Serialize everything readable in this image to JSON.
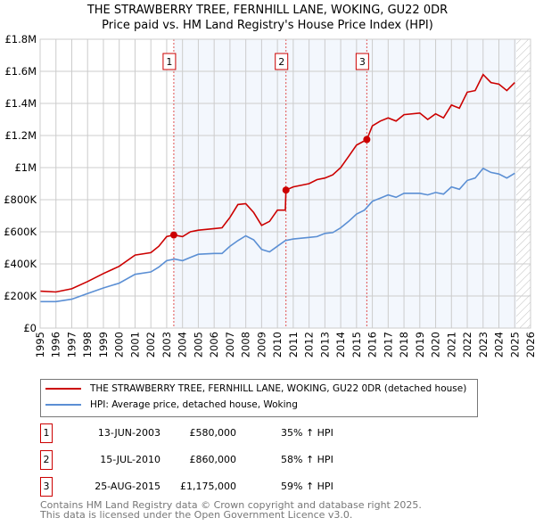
{
  "chart_data": {
    "type": "line",
    "title": "THE STRAWBERRY TREE, FERNHILL LANE, WOKING, GU22 0DR",
    "subtitle": "Price paid vs. HM Land Registry's House Price Index (HPI)",
    "xlim": [
      1995,
      2026
    ],
    "ylim": [
      0,
      1800000
    ],
    "x_ticks": [
      "1995",
      "1996",
      "1997",
      "1998",
      "1999",
      "2000",
      "2001",
      "2002",
      "2003",
      "2004",
      "2005",
      "2006",
      "2007",
      "2008",
      "2009",
      "2010",
      "2011",
      "2012",
      "2013",
      "2014",
      "2015",
      "2016",
      "2017",
      "2018",
      "2019",
      "2020",
      "2021",
      "2022",
      "2023",
      "2024",
      "2025",
      "2026"
    ],
    "y_ticks": [
      {
        "v": 0,
        "label": "£0"
      },
      {
        "v": 200000,
        "label": "£200K"
      },
      {
        "v": 400000,
        "label": "£400K"
      },
      {
        "v": 600000,
        "label": "£600K"
      },
      {
        "v": 800000,
        "label": "£800K"
      },
      {
        "v": 1000000,
        "label": "£1M"
      },
      {
        "v": 1200000,
        "label": "£1.2M"
      },
      {
        "v": 1400000,
        "label": "£1.4M"
      },
      {
        "v": 1600000,
        "label": "£1.6M"
      },
      {
        "v": 1800000,
        "label": "£1.8M"
      }
    ],
    "grid": true,
    "forecast_hatch_from": 2025.1,
    "series": [
      {
        "name": "THE STRAWBERRY TREE, FERNHILL LANE, WOKING, GU22 0DR (detached house)",
        "color": "#cc0000",
        "x": [
          1995,
          1996,
          1997,
          1998,
          1999,
          2000,
          2001,
          2002,
          2002.5,
          2003,
          2003.45,
          2004,
          2004.5,
          2005,
          2006,
          2006.5,
          2007,
          2007.5,
          2008,
          2008.5,
          2009,
          2009.5,
          2010,
          2010.5,
          2010.54,
          2011,
          2012,
          2012.5,
          2013,
          2013.5,
          2014,
          2014.5,
          2015,
          2015.65,
          2016,
          2016.5,
          2017,
          2017.5,
          2018,
          2019,
          2019.5,
          2020,
          2020.5,
          2021,
          2021.5,
          2022,
          2022.5,
          2023,
          2023.5,
          2024,
          2024.5,
          2025
        ],
        "y": [
          230000,
          225000,
          245000,
          290000,
          340000,
          385000,
          455000,
          470000,
          510000,
          570000,
          580000,
          570000,
          600000,
          610000,
          620000,
          625000,
          690000,
          770000,
          775000,
          720000,
          640000,
          665000,
          735000,
          735000,
          860000,
          880000,
          900000,
          925000,
          935000,
          955000,
          1000000,
          1070000,
          1140000,
          1175000,
          1260000,
          1290000,
          1310000,
          1290000,
          1330000,
          1340000,
          1300000,
          1335000,
          1310000,
          1390000,
          1370000,
          1470000,
          1480000,
          1580000,
          1530000,
          1520000,
          1480000,
          1530000
        ]
      },
      {
        "name": "HPI: Average price, detached house, Woking",
        "color": "#5b8fd4",
        "x": [
          1995,
          1996,
          1997,
          1998,
          1999,
          2000,
          2001,
          2002,
          2002.5,
          2003,
          2003.5,
          2004,
          2004.5,
          2005,
          2006,
          2006.5,
          2007,
          2007.5,
          2008,
          2008.5,
          2009,
          2009.5,
          2010,
          2010.5,
          2011,
          2012,
          2012.5,
          2013,
          2013.5,
          2014,
          2014.5,
          2015,
          2015.5,
          2016,
          2016.5,
          2017,
          2017.5,
          2018,
          2019,
          2019.5,
          2020,
          2020.5,
          2021,
          2021.5,
          2022,
          2022.5,
          2023,
          2023.5,
          2024,
          2024.5,
          2025
        ],
        "y": [
          165000,
          165000,
          180000,
          215000,
          250000,
          280000,
          335000,
          350000,
          380000,
          420000,
          430000,
          420000,
          440000,
          460000,
          465000,
          465000,
          510000,
          545000,
          575000,
          550000,
          490000,
          475000,
          510000,
          545000,
          555000,
          565000,
          570000,
          590000,
          595000,
          625000,
          665000,
          710000,
          735000,
          790000,
          810000,
          830000,
          815000,
          840000,
          840000,
          830000,
          845000,
          835000,
          880000,
          865000,
          920000,
          935000,
          995000,
          970000,
          960000,
          935000,
          965000
        ]
      }
    ],
    "transactions": [
      {
        "n": "1",
        "x": 2003.45,
        "date": "13-JUN-2003",
        "price": "£580,000",
        "value": 580000,
        "pct": "35% ↑ HPI"
      },
      {
        "n": "2",
        "x": 2010.54,
        "date": "15-JUL-2010",
        "price": "£860,000",
        "value": 860000,
        "pct": "58% ↑ HPI"
      },
      {
        "n": "3",
        "x": 2015.65,
        "date": "25-AUG-2015",
        "price": "£1,175,000",
        "value": 1175000,
        "pct": "59% ↑ HPI"
      }
    ]
  },
  "footer": {
    "line1": "Contains HM Land Registry data © Crown copyright and database right 2025.",
    "line2": "This data is licensed under the Open Government Licence v3.0."
  }
}
